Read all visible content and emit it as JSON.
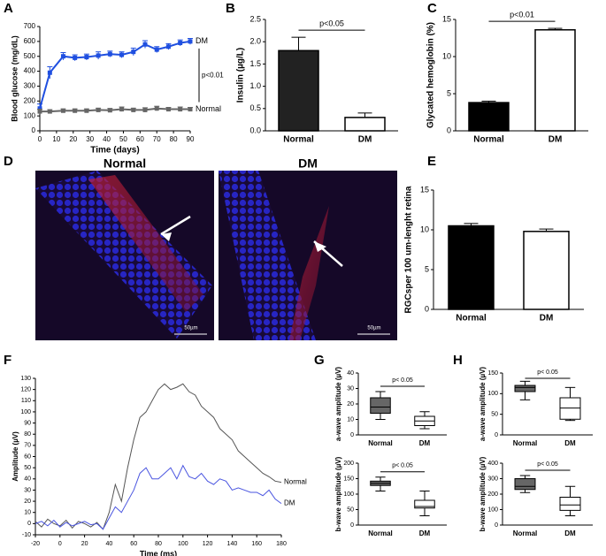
{
  "chart_data": [
    {
      "type": "line",
      "panel": "A",
      "xlabel": "Time (days)",
      "ylabel": "Blood glucose (mg/dL)",
      "x": [
        0,
        6,
        14,
        21,
        28,
        35,
        42,
        49,
        56,
        63,
        70,
        77,
        84,
        90
      ],
      "xlim": [
        0,
        90
      ],
      "xticks": [
        0,
        10,
        20,
        30,
        40,
        50,
        60,
        70,
        80,
        90
      ],
      "ylim": [
        0,
        700
      ],
      "yticks": [
        0,
        100,
        200,
        300,
        400,
        500,
        600,
        700
      ],
      "annotation": "p<0.01",
      "series": [
        {
          "name": "DM",
          "color": "#1f4fe0",
          "values": [
            150,
            390,
            500,
            490,
            495,
            505,
            515,
            510,
            530,
            580,
            545,
            565,
            590,
            600
          ],
          "errors": [
            30,
            40,
            25,
            20,
            20,
            25,
            20,
            20,
            25,
            25,
            20,
            20,
            20,
            20
          ]
        },
        {
          "name": "Normal",
          "color": "#666666",
          "values": [
            130,
            130,
            135,
            135,
            135,
            140,
            138,
            145,
            140,
            140,
            150,
            145,
            145,
            145
          ],
          "errors": [
            15,
            12,
            12,
            12,
            12,
            12,
            12,
            15,
            12,
            15,
            15,
            12,
            15,
            12
          ]
        }
      ]
    },
    {
      "type": "bar",
      "panel": "B",
      "ylabel": "Insulin (µg/L)",
      "categories": [
        "Normal",
        "DM"
      ],
      "values": [
        1.8,
        0.3
      ],
      "errors": [
        0.3,
        0.1
      ],
      "colors": [
        "#222222",
        "#ffffff"
      ],
      "ylim": [
        0,
        2.5
      ],
      "yticks": [
        {
          "value": 0,
          "label": "0.0"
        },
        {
          "value": 0.5,
          "label": "0.5"
        },
        {
          "value": 1,
          "label": "1.0"
        },
        {
          "value": 1.5,
          "label": "1.5"
        },
        {
          "value": 2,
          "label": "2.0"
        },
        {
          "value": 2.5,
          "label": "2.5"
        }
      ],
      "annotation": "p<0.05"
    },
    {
      "type": "bar",
      "panel": "C",
      "ylabel": "Glycated hemoglobin (%)",
      "categories": [
        "Normal",
        "DM"
      ],
      "values": [
        3.8,
        13.6
      ],
      "errors": [
        0.2,
        0.2
      ],
      "colors": [
        "#000000",
        "#ffffff"
      ],
      "ylim": [
        0,
        15
      ],
      "yticks": [
        0,
        5,
        10,
        15
      ],
      "annotation": "p<0.01"
    },
    {
      "type": "image",
      "panel": "D",
      "images": [
        {
          "title": "Normal",
          "scale_bar": "50µm"
        },
        {
          "title": "DM",
          "scale_bar": "50µm"
        }
      ]
    },
    {
      "type": "bar",
      "panel": "E",
      "ylabel": "RGCsper 100 um-lenght retina",
      "categories": [
        "Normal",
        "DM"
      ],
      "values": [
        10.5,
        9.8
      ],
      "errors": [
        0.3,
        0.3
      ],
      "colors": [
        "#000000",
        "#ffffff"
      ],
      "ylim": [
        0,
        15
      ],
      "yticks": [
        0,
        5,
        10,
        15
      ]
    },
    {
      "type": "line",
      "panel": "F",
      "xlabel": "Time (ms)",
      "ylabel": "Amplitude (µV)",
      "x": [
        -20,
        -15,
        -10,
        -5,
        0,
        5,
        10,
        15,
        20,
        25,
        30,
        35,
        40,
        45,
        50,
        55,
        60,
        65,
        70,
        75,
        80,
        85,
        90,
        95,
        100,
        105,
        110,
        115,
        120,
        125,
        130,
        135,
        140,
        145,
        150,
        155,
        160,
        165,
        170,
        175,
        180
      ],
      "xlim": [
        -20,
        180
      ],
      "xticks": [
        -20,
        0,
        20,
        40,
        60,
        80,
        100,
        120,
        140,
        160,
        180
      ],
      "ylim": [
        -10,
        130
      ],
      "yticks": [
        -10,
        0,
        10,
        20,
        30,
        40,
        50,
        60,
        70,
        80,
        90,
        100,
        110,
        120,
        130
      ],
      "series": [
        {
          "name": "Normal",
          "color": "#555555",
          "values": [
            2,
            -3,
            4,
            0,
            -2,
            3,
            -4,
            2,
            0,
            -3,
            1,
            -5,
            10,
            35,
            20,
            50,
            75,
            95,
            100,
            110,
            120,
            125,
            120,
            122,
            125,
            118,
            115,
            105,
            100,
            95,
            85,
            80,
            75,
            65,
            60,
            55,
            50,
            45,
            42,
            38,
            37
          ]
        },
        {
          "name": "DM",
          "color": "#4a55e0",
          "values": [
            0,
            2,
            -2,
            3,
            -3,
            1,
            -2,
            0,
            2,
            -1,
            0,
            -5,
            5,
            15,
            10,
            20,
            30,
            45,
            50,
            40,
            40,
            45,
            50,
            40,
            52,
            42,
            40,
            45,
            38,
            35,
            40,
            38,
            30,
            32,
            30,
            28,
            28,
            25,
            30,
            22,
            18
          ]
        }
      ]
    },
    {
      "type": "box",
      "panel": "G",
      "ylabel": "a-wave amplitude (µV)",
      "categories": [
        "Normal",
        "DM"
      ],
      "boxes": [
        {
          "min": 10,
          "q1": 14,
          "median": 18,
          "q3": 24,
          "max": 28
        },
        {
          "min": 4,
          "q1": 6,
          "median": 9,
          "q3": 12,
          "max": 15
        }
      ],
      "colors": [
        "#666666",
        "#ffffff"
      ],
      "ylim": [
        0,
        40
      ],
      "yticks": [
        0,
        10,
        20,
        30,
        40
      ],
      "annotation": "p< 0.05"
    },
    {
      "type": "box",
      "ylabel": "b-wave amplitude (µV)",
      "categories": [
        "Normal",
        "DM"
      ],
      "boxes": [
        {
          "min": 110,
          "q1": 128,
          "median": 135,
          "q3": 142,
          "max": 155
        },
        {
          "min": 30,
          "q1": 55,
          "median": 60,
          "q3": 80,
          "max": 110
        }
      ],
      "colors": [
        "#666666",
        "#ffffff"
      ],
      "ylim": [
        0,
        200
      ],
      "yticks": [
        0,
        50,
        100,
        150,
        200
      ],
      "annotation": "p< 0.05"
    },
    {
      "type": "box",
      "panel": "H",
      "ylabel": "a-wave amplitude (µV)",
      "categories": [
        "Normal",
        "DM"
      ],
      "boxes": [
        {
          "min": 85,
          "q1": 105,
          "median": 115,
          "q3": 120,
          "max": 130
        },
        {
          "min": 35,
          "q1": 38,
          "median": 65,
          "q3": 90,
          "max": 115
        }
      ],
      "colors": [
        "#666666",
        "#ffffff"
      ],
      "ylim": [
        0,
        150
      ],
      "yticks": [
        0,
        50,
        100,
        150
      ],
      "annotation": "p< 0.05"
    },
    {
      "type": "box",
      "ylabel": "b-wave amplitude (µV)",
      "categories": [
        "Normal",
        "DM"
      ],
      "boxes": [
        {
          "min": 210,
          "q1": 230,
          "median": 250,
          "q3": 300,
          "max": 320
        },
        {
          "min": 60,
          "q1": 95,
          "median": 130,
          "q3": 180,
          "max": 250
        }
      ],
      "colors": [
        "#666666",
        "#ffffff"
      ],
      "ylim": [
        0,
        400
      ],
      "yticks": [
        0,
        100,
        200,
        300,
        400
      ],
      "annotation": "p< 0.05"
    }
  ]
}
